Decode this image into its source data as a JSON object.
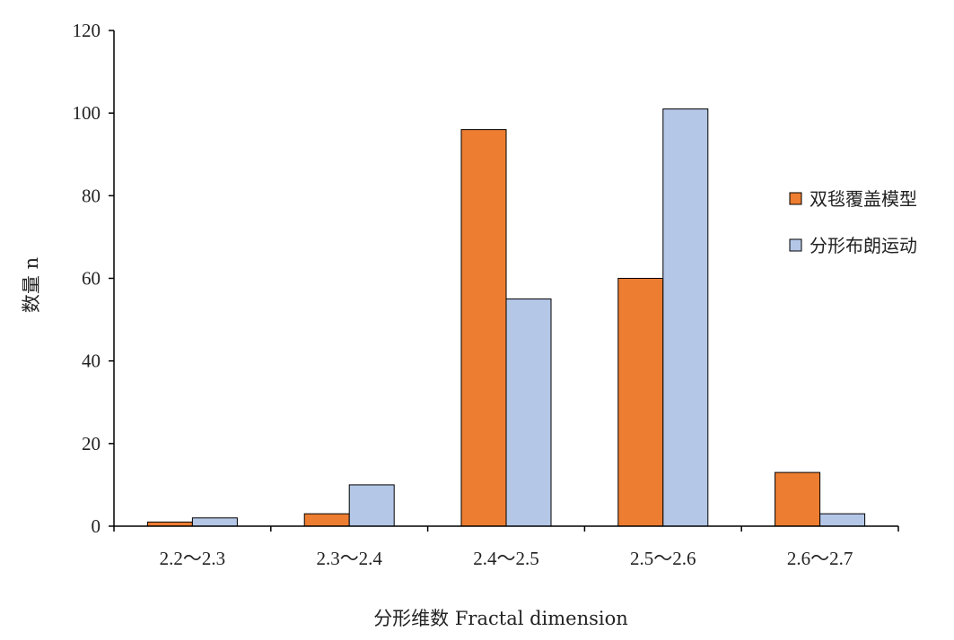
{
  "chart_data": {
    "type": "bar",
    "categories": [
      "2.2～2.3",
      "2.3～2.4",
      "2.4～2.5",
      "2.5～2.6",
      "2.6～2.7"
    ],
    "series": [
      {
        "name": "双毯覆盖模型",
        "color": "#ED7D31",
        "values": [
          1,
          3,
          96,
          60,
          13
        ]
      },
      {
        "name": "分形布朗运动",
        "color": "#B4C7E7",
        "values": [
          2,
          10,
          55,
          101,
          3
        ]
      }
    ],
    "title": "",
    "xlabel": "分形维数 Fractal dimension",
    "ylabel": "数量 n",
    "ylim": [
      0,
      120
    ],
    "yticks": [
      0,
      20,
      40,
      60,
      80,
      100,
      120
    ],
    "grid": false,
    "legend_position": "right"
  }
}
